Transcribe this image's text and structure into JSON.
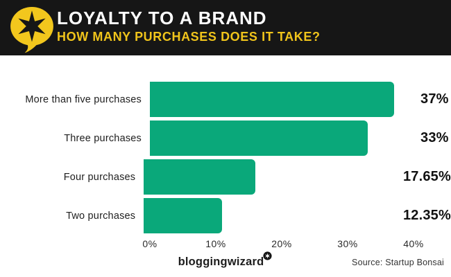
{
  "header": {
    "title": "LOYALTY TO A BRAND",
    "subtitle": "HOW MANY PURCHASES DOES IT TAKE?"
  },
  "colors": {
    "header_bg": "#161616",
    "accent_yellow": "#f0c41b",
    "bar_green": "#0aa87a",
    "text_dark": "#1d1d1d"
  },
  "icons": {
    "logo": "speech-bubble-star-icon",
    "badge": "mini-star-badge-icon"
  },
  "chart_data": {
    "type": "bar",
    "orientation": "horizontal",
    "title": "LOYALTY TO A BRAND",
    "subtitle": "HOW MANY PURCHASES DOES IT TAKE?",
    "categories": [
      "More than five purchases",
      "Three purchases",
      "Four purchases",
      "Two purchases"
    ],
    "values": [
      37,
      33,
      17.65,
      12.35
    ],
    "value_labels": [
      "37%",
      "33%",
      "17.65%",
      "12.35%"
    ],
    "x_axis": {
      "min": 0,
      "max": 40,
      "ticks": [
        "0%",
        "10%",
        "20%",
        "30%",
        "40%"
      ],
      "tick_values": [
        0,
        10,
        20,
        30,
        40
      ]
    },
    "grid": false,
    "legend": false,
    "bar_color": "#0aa87a"
  },
  "footer": {
    "brand": "bloggingwizard",
    "source": "Source: Startup Bonsai"
  }
}
